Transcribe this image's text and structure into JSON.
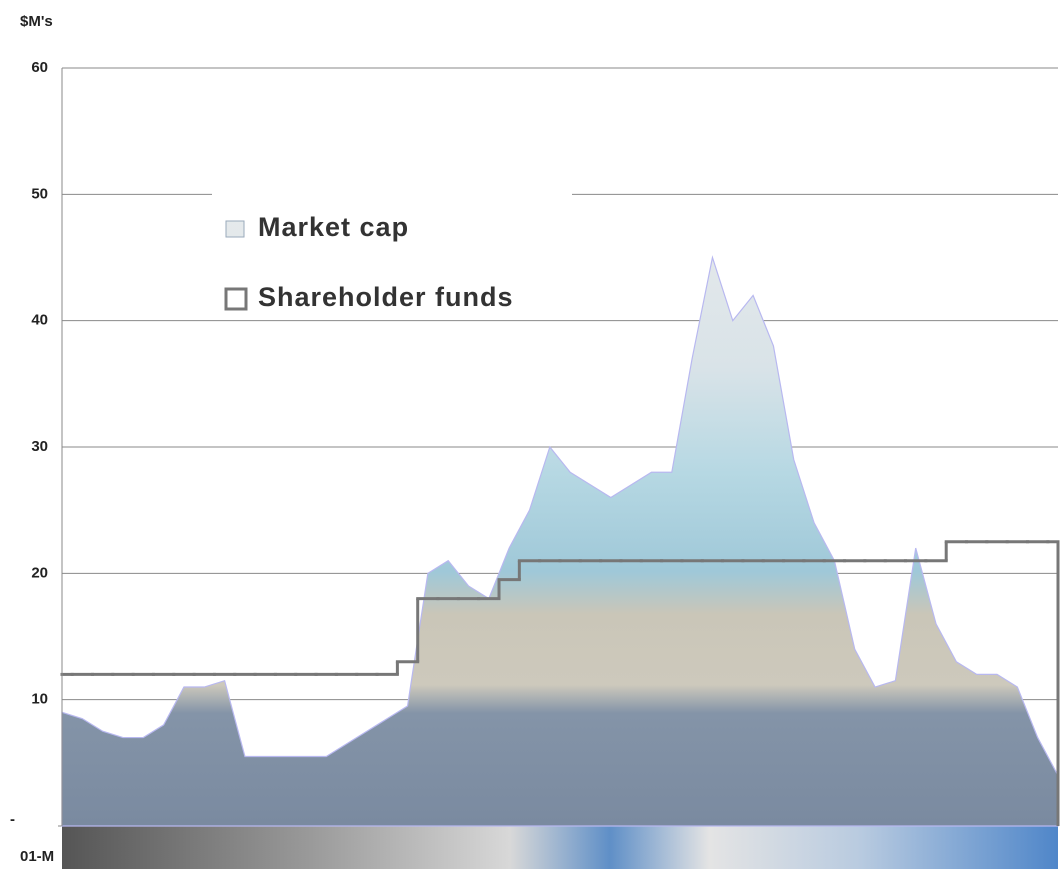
{
  "chart_data": {
    "type": "area-step",
    "y_axis_label": "$M's",
    "categories": [
      "01-M",
      null,
      null,
      null,
      null,
      null,
      null,
      null,
      null,
      null,
      null,
      null,
      null,
      null,
      null,
      null,
      null,
      null,
      null,
      null,
      null,
      null,
      null,
      null,
      null,
      null,
      null,
      null,
      null,
      null,
      null,
      null,
      null,
      null,
      null,
      null,
      null,
      null,
      null,
      null,
      null,
      null,
      null,
      null,
      null,
      null,
      null,
      null,
      null,
      null
    ],
    "series": [
      {
        "name": "Market cap",
        "kind": "area",
        "color": "#b8b8f0",
        "values": [
          9,
          8.5,
          7.5,
          7,
          7,
          8,
          11,
          11,
          11.5,
          5.5,
          5.5,
          5.5,
          5.5,
          5.5,
          6.5,
          7.5,
          8.5,
          9.5,
          20,
          21,
          19,
          18,
          22,
          25,
          30,
          28,
          27,
          26,
          27,
          28,
          28,
          37,
          45,
          40,
          42,
          38,
          29,
          24,
          21,
          14,
          11,
          11.5,
          22,
          16,
          13,
          12,
          12,
          11,
          7,
          4
        ]
      },
      {
        "name": "Shareholder funds",
        "kind": "step",
        "color": "#777777",
        "values": [
          12,
          12,
          12,
          12,
          12,
          12,
          12,
          12,
          12,
          12,
          12,
          12,
          12,
          12,
          12,
          12,
          12,
          13,
          18,
          18,
          18,
          18,
          19.5,
          21,
          21,
          21,
          21,
          21,
          21,
          21,
          21,
          21,
          21,
          21,
          21,
          21,
          21,
          21,
          21,
          21,
          21,
          21,
          21,
          21,
          22.5,
          22.5,
          22.5,
          22.5,
          22.5,
          22.5
        ]
      }
    ],
    "ylim": [
      0,
      60
    ],
    "yticks": [
      {
        "value": 0,
        "label": "-"
      },
      10,
      20,
      30,
      40,
      50,
      60
    ],
    "grid": true
  }
}
